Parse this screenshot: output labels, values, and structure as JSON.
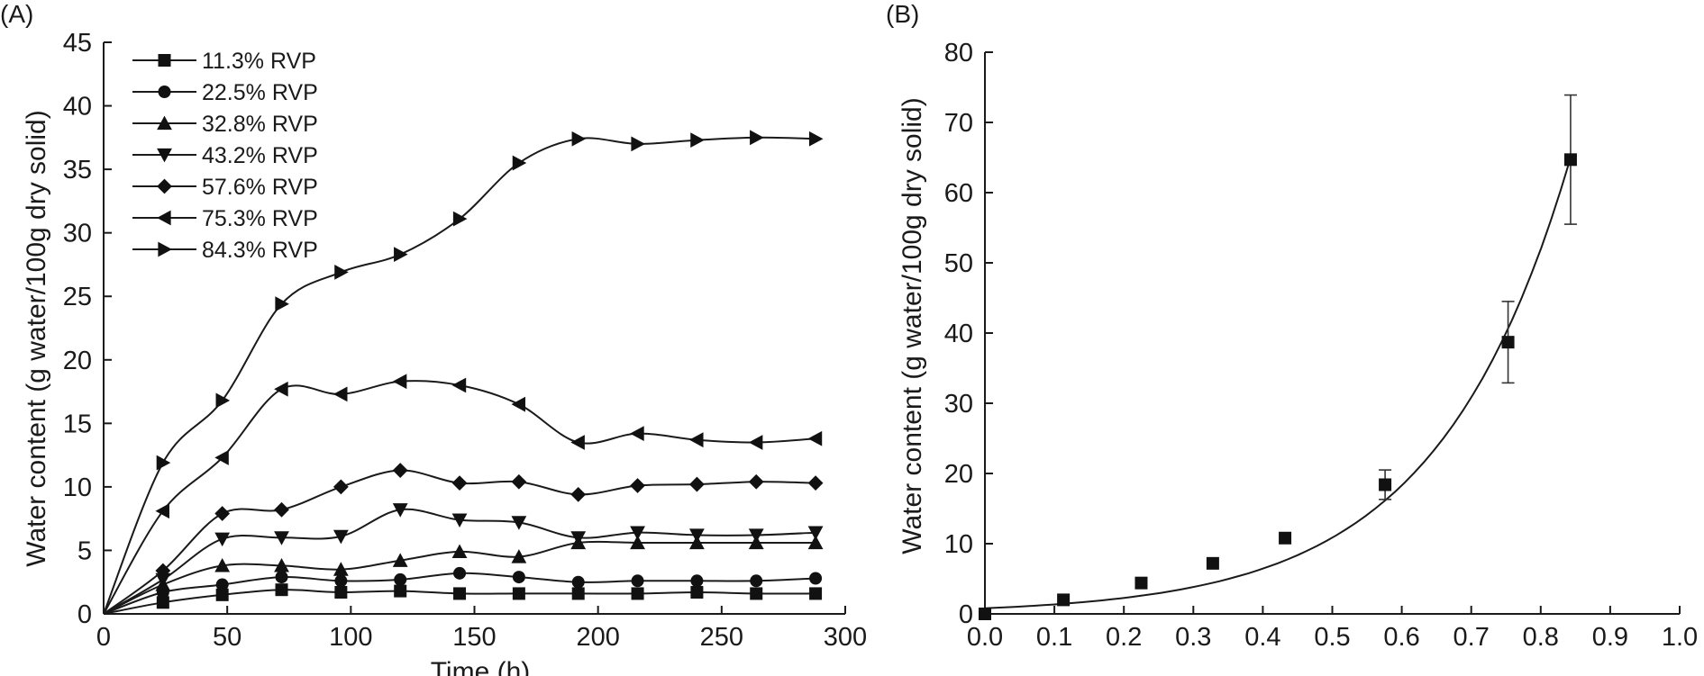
{
  "chart_data": [
    {
      "panel_label": "(A)",
      "type": "line",
      "xlabel": "Time (h)",
      "ylabel": "Water content (g water/100g dry solid)",
      "xlim": [
        0,
        300
      ],
      "ylim": [
        0,
        45
      ],
      "xticks": [
        0,
        50,
        100,
        150,
        200,
        250,
        300
      ],
      "yticks": [
        0,
        5,
        10,
        15,
        20,
        25,
        30,
        35,
        40,
        45
      ],
      "legend_position": "top-left",
      "x": [
        0,
        24,
        48,
        72,
        96,
        120,
        144,
        168,
        192,
        216,
        240,
        264,
        288
      ],
      "series": [
        {
          "name": "11.3% RVP",
          "marker": "square",
          "values": [
            0,
            0.9,
            1.5,
            1.9,
            1.7,
            1.8,
            1.6,
            1.6,
            1.6,
            1.6,
            1.7,
            1.6,
            1.6
          ]
        },
        {
          "name": "22.5% RVP",
          "marker": "circle",
          "values": [
            0,
            1.7,
            2.3,
            2.9,
            2.6,
            2.7,
            3.2,
            2.9,
            2.5,
            2.6,
            2.6,
            2.6,
            2.8
          ]
        },
        {
          "name": "32.8% RVP",
          "marker": "triangle-up",
          "values": [
            0,
            2.3,
            3.8,
            3.8,
            3.5,
            4.2,
            4.9,
            4.5,
            5.6,
            5.6,
            5.6,
            5.6,
            5.6
          ]
        },
        {
          "name": "43.2% RVP",
          "marker": "triangle-down",
          "values": [
            0,
            2.7,
            5.9,
            6.0,
            6.1,
            8.2,
            7.4,
            7.2,
            6.0,
            6.4,
            6.2,
            6.2,
            6.4
          ]
        },
        {
          "name": "57.6% RVP",
          "marker": "diamond",
          "values": [
            0,
            3.4,
            7.9,
            8.2,
            10.0,
            11.3,
            10.3,
            10.4,
            9.4,
            10.1,
            10.2,
            10.4,
            10.3
          ]
        },
        {
          "name": "75.3% RVP",
          "marker": "triangle-left",
          "values": [
            0,
            8.1,
            12.3,
            17.7,
            17.3,
            18.3,
            18.0,
            16.5,
            13.5,
            14.2,
            13.7,
            13.5,
            13.8
          ]
        },
        {
          "name": "84.3% RVP",
          "marker": "triangle-right",
          "values": [
            0,
            11.9,
            16.8,
            24.4,
            26.9,
            28.3,
            31.1,
            35.5,
            37.4,
            37.0,
            37.3,
            37.5,
            37.4
          ]
        }
      ]
    },
    {
      "panel_label": "(B)",
      "type": "scatter",
      "xlabel": "",
      "ylabel": "Water content (g water/100g dry solid)",
      "xlim": [
        0.0,
        1.0
      ],
      "ylim": [
        0,
        80
      ],
      "xticks": [
        "0.0",
        "0.1",
        "0.2",
        "0.3",
        "0.4",
        "0.5",
        "0.6",
        "0.7",
        "0.8",
        "0.9",
        "1.0"
      ],
      "yticks": [
        0,
        10,
        20,
        30,
        40,
        50,
        60,
        70,
        80
      ],
      "marker": "square",
      "points": [
        {
          "x": 0.0,
          "y": 0.0
        },
        {
          "x": 0.113,
          "y": 2.0
        },
        {
          "x": 0.225,
          "y": 4.4
        },
        {
          "x": 0.328,
          "y": 7.2
        },
        {
          "x": 0.432,
          "y": 10.8
        },
        {
          "x": 0.576,
          "y": 18.4,
          "err": 2.1
        },
        {
          "x": 0.753,
          "y": 38.7,
          "err": 5.8
        },
        {
          "x": 0.843,
          "y": 64.7,
          "err": 9.2
        }
      ],
      "fit_curve": {
        "x_from": 0.0,
        "x_to": 0.843,
        "y0": 0.8,
        "y_end": 65.0
      }
    }
  ]
}
